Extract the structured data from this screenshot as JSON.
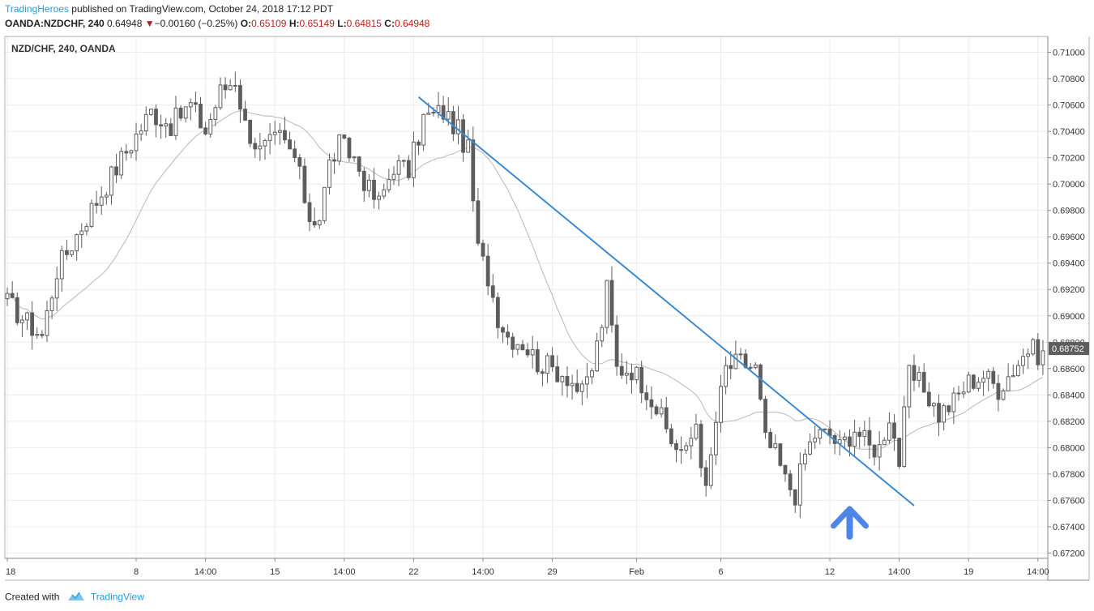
{
  "header": {
    "author": "TradingHeroes",
    "published_text": "published on TradingView.com, October 24, 2018 17:12 PDT",
    "symbol": "OANDA:NZDCHF, 240",
    "last": "0.64948",
    "change_arrow": "▼",
    "change": "−0.00160 (−0.25%)",
    "o_label": "O:",
    "o_value": "0.65109",
    "h_label": "H:",
    "h_value": "0.65149",
    "l_label": "L:",
    "l_value": "0.64815",
    "c_label": "C:",
    "c_value": "0.64948"
  },
  "footer": {
    "created_with": "Created with",
    "brand": "TradingView"
  },
  "colors": {
    "candle_body": "#5d5d5d",
    "candle_hollow": "#ffffff",
    "wick": "#5d5d5d",
    "moving_average": "#b8b8b8",
    "trendline": "#3d8ad0",
    "arrow": "#4d86e6",
    "grid": "#ececec",
    "price_label_bg": "#5d5d5d"
  },
  "chart_data": {
    "type": "candlestick",
    "title": "NZD/CHF, 240, OANDA",
    "timeframe": "240",
    "y_axis_side": "right",
    "ylim": [
      0.6716,
      0.7112
    ],
    "y_ticks": [
      "0.71000",
      "0.70800",
      "0.70600",
      "0.70400",
      "0.70200",
      "0.70000",
      "0.69800",
      "0.69600",
      "0.69400",
      "0.69200",
      "0.69000",
      "0.68800",
      "0.68600",
      "0.68400",
      "0.68200",
      "0.68000",
      "0.67800",
      "0.67600",
      "0.67400",
      "0.67200"
    ],
    "current_price_label": "0.68752",
    "current_price": 0.68752,
    "x_ticks": [
      {
        "label": "18",
        "bar": 0
      },
      {
        "label": "8",
        "bar": 26
      },
      {
        "label": "14:00",
        "bar": 40
      },
      {
        "label": "15",
        "bar": 54
      },
      {
        "label": "14:00",
        "bar": 68
      },
      {
        "label": "22",
        "bar": 82
      },
      {
        "label": "14:00",
        "bar": 96
      },
      {
        "label": "29",
        "bar": 110
      },
      {
        "label": "Feb",
        "bar": 127
      },
      {
        "label": "6",
        "bar": 144
      },
      {
        "label": "12",
        "bar": 166
      },
      {
        "label": "14:00",
        "bar": 180
      },
      {
        "label": "19",
        "bar": 194
      },
      {
        "label": "14:00",
        "bar": 208
      }
    ],
    "bar_count": 210,
    "price_keypoints": [
      [
        0,
        0.691
      ],
      [
        4,
        0.6895
      ],
      [
        7,
        0.6885
      ],
      [
        10,
        0.6935
      ],
      [
        13,
        0.6955
      ],
      [
        16,
        0.6975
      ],
      [
        20,
        0.7
      ],
      [
        24,
        0.7025
      ],
      [
        29,
        0.7055
      ],
      [
        33,
        0.7045
      ],
      [
        37,
        0.706
      ],
      [
        40,
        0.704
      ],
      [
        43,
        0.707
      ],
      [
        46,
        0.708
      ],
      [
        48,
        0.7045
      ],
      [
        51,
        0.7025
      ],
      [
        55,
        0.7035
      ],
      [
        58,
        0.702
      ],
      [
        61,
        0.6975
      ],
      [
        63,
        0.6975
      ],
      [
        65,
        0.7015
      ],
      [
        67,
        0.703
      ],
      [
        70,
        0.702
      ],
      [
        73,
        0.6995
      ],
      [
        75,
        0.6985
      ],
      [
        78,
        0.7015
      ],
      [
        81,
        0.701
      ],
      [
        84,
        0.705
      ],
      [
        88,
        0.7055
      ],
      [
        91,
        0.704
      ],
      [
        93,
        0.7025
      ],
      [
        95,
        0.695
      ],
      [
        97,
        0.693
      ],
      [
        99,
        0.69
      ],
      [
        101,
        0.6885
      ],
      [
        104,
        0.688
      ],
      [
        107,
        0.6865
      ],
      [
        110,
        0.686
      ],
      [
        113,
        0.6855
      ],
      [
        116,
        0.684
      ],
      [
        118,
        0.686
      ],
      [
        120,
        0.6895
      ],
      [
        121,
        0.692
      ],
      [
        123,
        0.686
      ],
      [
        126,
        0.686
      ],
      [
        129,
        0.6845
      ],
      [
        131,
        0.683
      ],
      [
        134,
        0.6805
      ],
      [
        137,
        0.6795
      ],
      [
        139,
        0.682
      ],
      [
        141,
        0.6765
      ],
      [
        143,
        0.682
      ],
      [
        145,
        0.686
      ],
      [
        148,
        0.6865
      ],
      [
        151,
        0.686
      ],
      [
        153,
        0.6805
      ],
      [
        155,
        0.6795
      ],
      [
        157,
        0.6775
      ],
      [
        159,
        0.6765
      ],
      [
        161,
        0.6795
      ],
      [
        163,
        0.681
      ],
      [
        166,
        0.681
      ],
      [
        168,
        0.68
      ],
      [
        171,
        0.6815
      ],
      [
        174,
        0.68
      ],
      [
        176,
        0.68
      ],
      [
        178,
        0.6825
      ],
      [
        180,
        0.679
      ],
      [
        182,
        0.6855
      ],
      [
        185,
        0.6845
      ],
      [
        188,
        0.6825
      ],
      [
        191,
        0.6835
      ],
      [
        194,
        0.685
      ],
      [
        197,
        0.6855
      ],
      [
        200,
        0.6845
      ],
      [
        203,
        0.686
      ],
      [
        206,
        0.6875
      ],
      [
        209,
        0.687
      ]
    ],
    "moving_average_period": 20,
    "trendline": {
      "start": {
        "bar": 83,
        "price": 0.7066
      },
      "end": {
        "bar": 183,
        "price": 0.6756
      }
    },
    "annotation_arrow": {
      "bar": 170,
      "direction": "up"
    }
  }
}
